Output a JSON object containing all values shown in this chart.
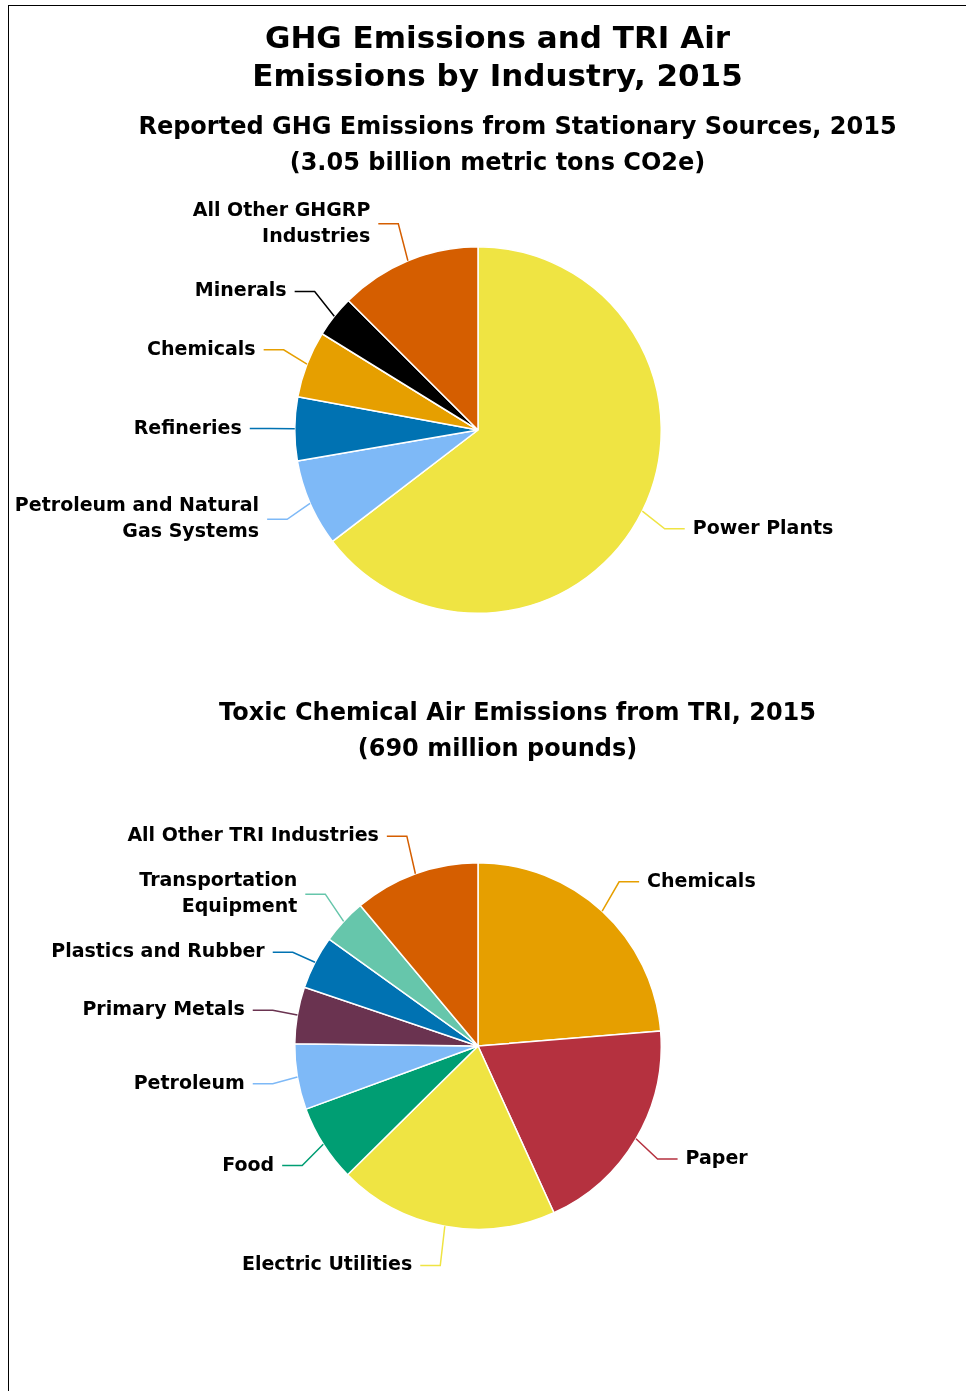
{
  "chart_data": [
    {
      "type": "other",
      "title": "GHG Emissions and TRI Air Emissions by Industry, 2015"
    },
    {
      "type": "pie",
      "title": "Reported GHG Emissions from Stationary Sources, 2015",
      "subtitle": "(3.05 billion metric tons CO2e)",
      "categories": [
        "Power Plants",
        "Petroleum and Natural Gas Systems",
        "Refineries",
        "Chemicals",
        "Minerals",
        "All Other GHGRP Industries"
      ],
      "values": [
        64.6,
        7.7,
        5.6,
        5.9,
        3.7,
        12.5
      ],
      "colors": [
        "#efe443",
        "#7eb9f7",
        "#0072b2",
        "#e69f00",
        "#000000",
        "#d55e00"
      ],
      "legend": false
    },
    {
      "type": "pie",
      "title": "Toxic Chemical Air Emissions from TRI, 2015",
      "subtitle": "(690 million pounds)",
      "categories": [
        "Chemicals",
        "Paper",
        "Electric Utilities",
        "Food",
        "Petroleum",
        "Primary Metals",
        "Plastics and Rubber",
        "Transportation Equipment",
        "All Other TRI Industries"
      ],
      "values": [
        23.7,
        19.5,
        19.4,
        6.8,
        5.8,
        5.0,
        4.7,
        4.0,
        11.1
      ],
      "colors": [
        "#e69f00",
        "#b5313f",
        "#efe443",
        "#009e73",
        "#7eb9f7",
        "#6a3350",
        "#0072b2",
        "#66c6ab",
        "#d55e00"
      ],
      "legend": false
    }
  ]
}
